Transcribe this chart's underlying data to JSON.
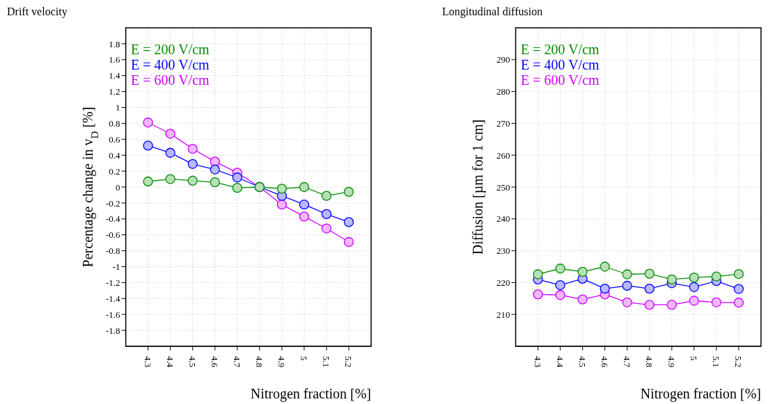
{
  "chart_data": [
    {
      "type": "line",
      "title": "Drift velocity",
      "xlabel": "Nitrogen fraction [%]",
      "ylabel": "Percentage change in v$_{D}$ [%]",
      "x": [
        4.3,
        4.4,
        4.5,
        4.6,
        4.7,
        4.8,
        4.9,
        5,
        5.1,
        5.2
      ],
      "xlim": [
        4.2,
        5.3
      ],
      "xticks": [
        4.3,
        4.4,
        4.5,
        4.6,
        4.7,
        4.8,
        4.9,
        5,
        5.1,
        5.2
      ],
      "ylim": [
        -2,
        2
      ],
      "yticks": [
        -1.8,
        -1.6,
        -1.4,
        -1.2,
        -1,
        -0.8,
        -0.6,
        -0.4,
        -0.2,
        0,
        0.2,
        0.4,
        0.6,
        0.8,
        1,
        1.2,
        1.4,
        1.6,
        1.8
      ],
      "grid": true,
      "legend": "top",
      "marker": "circle",
      "line_style": "solid",
      "series": [
        {
          "name": "E = 200 V/cm",
          "color": "#008c00",
          "values": [
            0.07,
            0.1,
            0.08,
            0.06,
            -0.01,
            0,
            -0.02,
            0,
            -0.11,
            -0.06
          ]
        },
        {
          "name": "E = 400 V/cm",
          "color": "#0000ff",
          "values": [
            0.52,
            0.43,
            0.29,
            0.22,
            0.12,
            0,
            -0.11,
            -0.22,
            -0.34,
            -0.44
          ]
        },
        {
          "name": "E = 600 V/cm",
          "color": "#cc00ff",
          "values": [
            0.81,
            0.67,
            0.48,
            0.32,
            0.18,
            0,
            -0.22,
            -0.37,
            -0.52,
            -0.69
          ]
        }
      ]
    },
    {
      "type": "line",
      "title": "Longitudinal diffusion",
      "xlabel": "Nitrogen fraction [%]",
      "ylabel": "Diffusion [µm for 1 cm]",
      "x": [
        4.3,
        4.4,
        4.5,
        4.6,
        4.7,
        4.8,
        4.9,
        5,
        5.1,
        5.2
      ],
      "xlim": [
        4.2,
        5.3
      ],
      "xticks": [
        4.3,
        4.4,
        4.5,
        4.6,
        4.7,
        4.8,
        4.9,
        5,
        5.1,
        5.2
      ],
      "ylim": [
        200,
        300
      ],
      "yticks": [
        210,
        220,
        230,
        240,
        250,
        260,
        270,
        280,
        290
      ],
      "grid": true,
      "legend": "top",
      "marker": "circle",
      "line_style": "solid",
      "series": [
        {
          "name": "E = 200 V/cm",
          "color": "#008c00",
          "values": [
            222.6,
            224.4,
            223.4,
            225.0,
            222.6,
            222.8,
            221.0,
            221.6,
            221.9,
            222.7
          ]
        },
        {
          "name": "E = 400 V/cm",
          "color": "#0000ff",
          "values": [
            221.0,
            219.2,
            221.2,
            218.1,
            219.0,
            218.1,
            219.8,
            218.6,
            220.5,
            218.0
          ]
        },
        {
          "name": "E = 600 V/cm",
          "color": "#cc00ff",
          "values": [
            216.3,
            216.1,
            214.7,
            216.3,
            213.8,
            213.0,
            213.0,
            214.3,
            213.8,
            213.7
          ]
        }
      ]
    }
  ]
}
